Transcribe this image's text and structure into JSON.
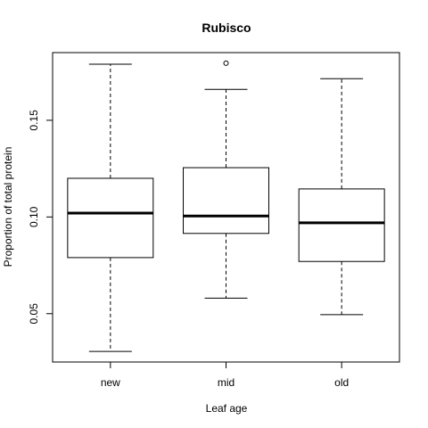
{
  "chart_data": {
    "type": "boxplot",
    "title": "Rubisco",
    "xlabel": "Leaf age",
    "ylabel": "Proportion of total protein",
    "categories": [
      "new",
      "mid",
      "old"
    ],
    "ylim": [
      0.025,
      0.185
    ],
    "yticks": [
      0.05,
      0.1,
      0.15
    ],
    "ytick_labels": [
      "0.05",
      "0.10",
      "0.15"
    ],
    "boxes": [
      {
        "name": "new",
        "whisker_low": 0.0305,
        "q1": 0.079,
        "median": 0.102,
        "q3": 0.12,
        "whisker_high": 0.179,
        "outliers": []
      },
      {
        "name": "mid",
        "whisker_low": 0.058,
        "q1": 0.0915,
        "median": 0.1005,
        "q3": 0.1255,
        "whisker_high": 0.166,
        "outliers": [
          0.1795
        ]
      },
      {
        "name": "old",
        "whisker_low": 0.0495,
        "q1": 0.077,
        "median": 0.097,
        "q3": 0.1145,
        "whisker_high": 0.1715,
        "outliers": []
      }
    ],
    "grid": false,
    "legend": "none"
  }
}
